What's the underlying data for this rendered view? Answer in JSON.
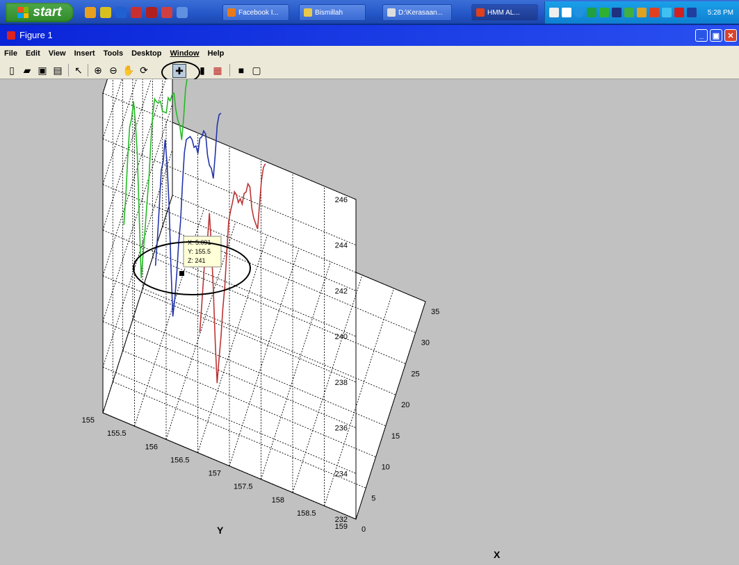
{
  "taskbar": {
    "start_label": "start",
    "tasks": [
      "Facebook  I...",
      "Bismillah",
      "D:\\Kerasaan...",
      "HMM AL...",
      ""
    ],
    "clock": "5:28 PM"
  },
  "window": {
    "title": "Figure 1"
  },
  "menu": [
    "File",
    "Edit",
    "View",
    "Insert",
    "Tools",
    "Desktop",
    "Window",
    "Help"
  ],
  "toolbar": {
    "buttons": [
      "new-figure",
      "open-file",
      "save",
      "print",
      "edit-plot",
      "zoom-in",
      "zoom-out",
      "pan",
      "rotate-3d",
      "data-cursor",
      "insert-colorbar",
      "insert-legend",
      "hide-plot-tools",
      "show-plot-tools"
    ]
  },
  "datatip": {
    "x_text": "X: 5.091",
    "y_text": "Y: 155.5",
    "z_text": "Z: 241"
  },
  "chart_data": {
    "type": "line",
    "title": "",
    "xlabel": "X",
    "ylabel": "Y",
    "zlabel": "",
    "xlim": [
      0,
      35
    ],
    "ylim": [
      155,
      159
    ],
    "zlim": [
      232,
      246
    ],
    "x_ticks": [
      "0",
      "5",
      "10",
      "15",
      "20",
      "25",
      "30",
      "35"
    ],
    "y_ticks": [
      "155",
      "155.5",
      "156",
      "156.5",
      "157",
      "157.5",
      "158",
      "158.5",
      "159"
    ],
    "z_ticks": [
      "232",
      "234",
      "236",
      "238",
      "240",
      "242",
      "244",
      "246"
    ],
    "grid": true,
    "series": [
      {
        "color": "#22bb22",
        "z": [
          240.3,
          241.3,
          242.7,
          243.8,
          243.9,
          244.4,
          243.2,
          241.5,
          238.5,
          235.6,
          236.4,
          237.2,
          238.1,
          238.9,
          240.2,
          241.2,
          241.6,
          241.2,
          240.9,
          240.7,
          240.0,
          239.7,
          239.4,
          239.8,
          239.4,
          239.4,
          239.2,
          238.2,
          237.5,
          237.0,
          236.1,
          236.8,
          237.8,
          238.1,
          237.8
        ]
      },
      {
        "color": "#2233aa",
        "z": [
          239.1,
          240.0,
          241.2,
          242.5,
          242.6,
          243.3,
          242.0,
          240.0,
          237.0,
          234.5,
          235.0,
          235.8,
          236.9,
          237.6,
          239.0,
          240.1,
          240.4,
          240.2,
          240.0,
          239.6,
          239.0,
          238.8,
          238.2,
          238.6,
          238.4,
          238.4,
          238.0,
          236.8,
          236.1,
          235.7,
          235.0,
          235.8,
          236.8,
          237.0,
          236.8
        ]
      },
      {
        "color": "#bb3333",
        "z": [
          237.0,
          237.9,
          238.9,
          239.9,
          240.0,
          240.9,
          239.2,
          237.1,
          234.5,
          232.4,
          233.2,
          233.9,
          234.9,
          235.6,
          236.8,
          237.9,
          238.1,
          238.2,
          238.4,
          238.0,
          237.4,
          237.3,
          236.8,
          237.0,
          236.8,
          236.9,
          236.5,
          235.3,
          234.6,
          234.1,
          233.6,
          234.4,
          235.2,
          235.5,
          235.4
        ]
      }
    ]
  }
}
